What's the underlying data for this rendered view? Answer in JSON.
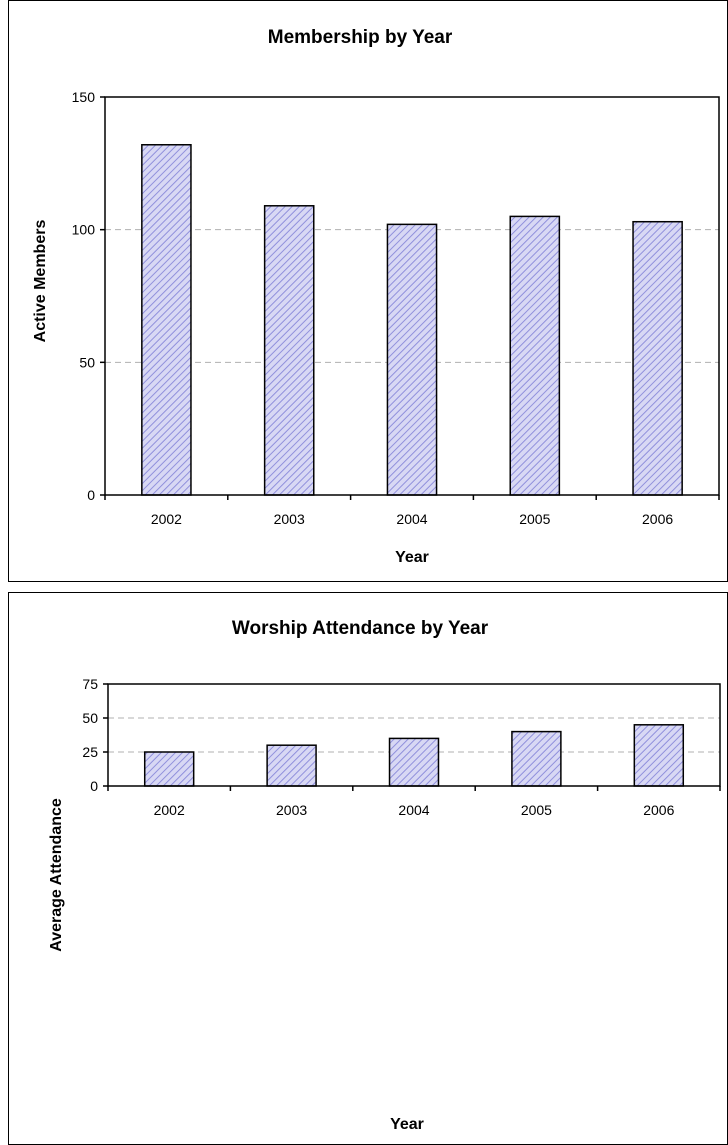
{
  "chart_data": [
    {
      "type": "bar",
      "title": "Membership by Year",
      "xlabel": "Year",
      "ylabel": "Active Members",
      "categories": [
        "2002",
        "2003",
        "2004",
        "2005",
        "2006"
      ],
      "values": [
        132,
        109,
        102,
        105,
        103
      ],
      "ylim": [
        0,
        150
      ],
      "yticks": [
        "0",
        "50",
        "100",
        "150"
      ],
      "grid": "horizontal dashed",
      "legend": "none",
      "bar_fill": "#c8c8f0",
      "bar_hatch": "#8c8cdc",
      "grid_color": "#b0b0b0"
    },
    {
      "type": "bar",
      "title": "Worship Attendance by Year",
      "xlabel": "Year",
      "ylabel": "Average Attendance",
      "categories": [
        "2002",
        "2003",
        "2004",
        "2005",
        "2006"
      ],
      "values": [
        25,
        30,
        35,
        40,
        45
      ],
      "ylim": [
        0,
        75
      ],
      "yticks": [
        "0",
        "25",
        "50",
        "75"
      ],
      "grid": "horizontal dashed",
      "legend": "none",
      "bar_fill": "#c8c8f0",
      "bar_hatch": "#8c8cdc",
      "grid_color": "#b0b0b0"
    }
  ]
}
